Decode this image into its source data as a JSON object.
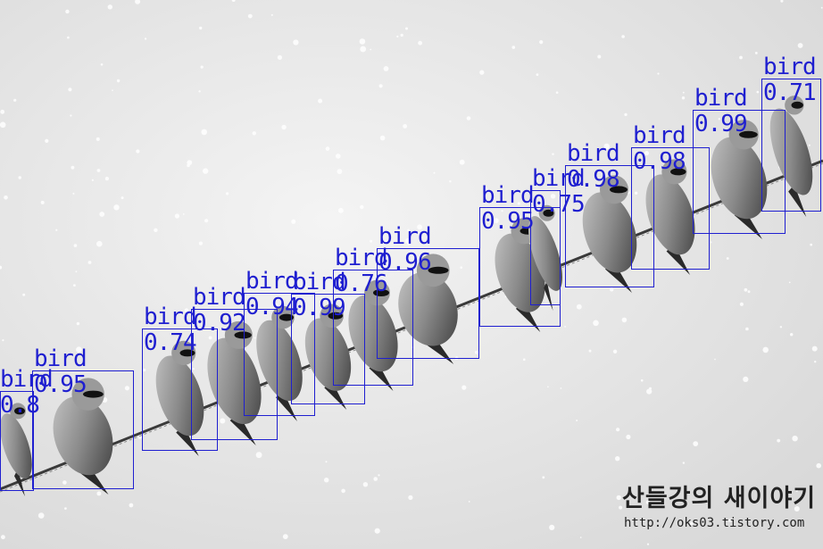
{
  "image": {
    "subject": "birds perched on a wire in falling snow",
    "tone": "grayscale",
    "detection_color": "#1f1fd0"
  },
  "detections": [
    {
      "label": "bird",
      "score": "0.8"
    },
    {
      "label": "bird",
      "score": "0.95"
    },
    {
      "label": "bird",
      "score": "0.74"
    },
    {
      "label": "bird",
      "score": "0.92"
    },
    {
      "label": "bird",
      "score": "0.94"
    },
    {
      "label": "bird",
      "score": "0.99"
    },
    {
      "label": "bird",
      "score": "0.76"
    },
    {
      "label": "bird",
      "score": "0.96"
    },
    {
      "label": "bird",
      "score": "0.95"
    },
    {
      "label": "bird",
      "score": "0.75"
    },
    {
      "label": "bird",
      "score": "0.98"
    },
    {
      "label": "bird",
      "score": "0.98"
    },
    {
      "label": "bird",
      "score": "0.99"
    },
    {
      "label": "bird",
      "score": "0.71"
    }
  ],
  "watermark": {
    "title": "산들강의 새이야기",
    "url": "http://oks03.tistory.com"
  }
}
